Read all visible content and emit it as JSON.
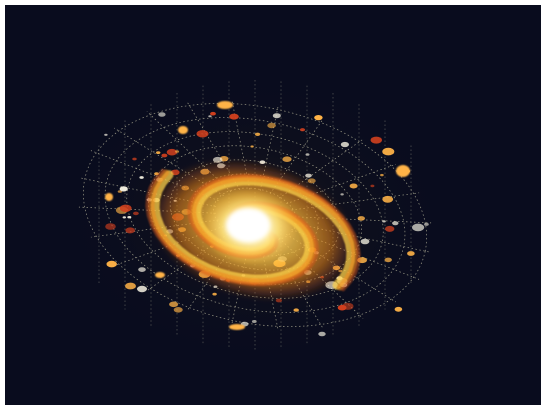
{
  "image": {
    "subject": "spiral-galaxy-illustration",
    "colors": {
      "background": "#090c1e",
      "border": "#ffffff",
      "core": "#ffffff",
      "core_glow": "#fff3a8",
      "arm_inner": "#ffd24a",
      "arm_outer": "#f08a1a",
      "arm_edge": "#d9581a",
      "grid": "#c9c7a8",
      "satellite_warm": "#ffb347",
      "satellite_white": "#f4f0e0",
      "satellite_red": "#d2401e"
    }
  }
}
